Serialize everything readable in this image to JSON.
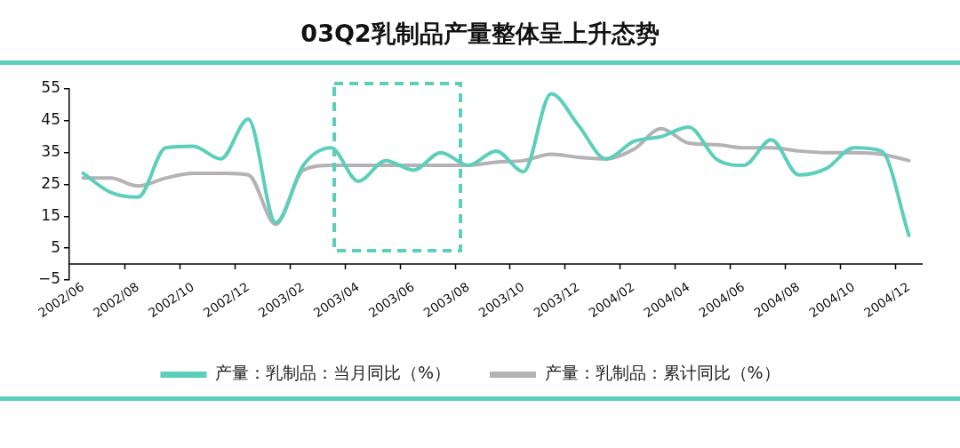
{
  "chart_data": {
    "type": "line",
    "title": "03Q2乳制品产量整体呈上升态势",
    "categories": [
      "2002/06",
      null,
      "2002/08",
      null,
      "2002/10",
      null,
      "2002/12",
      null,
      "2003/02",
      null,
      "2003/04",
      null,
      "2003/06",
      null,
      "2003/08",
      null,
      "2003/10",
      null,
      "2003/12",
      null,
      "2004/02",
      null,
      "2004/04",
      null,
      "2004/06",
      null,
      "2004/08",
      null,
      "2004/10",
      null,
      "2004/12"
    ],
    "series": [
      {
        "name": "产量：乳制品：当月同比（%）",
        "color": "#5ccfbb",
        "values": [
          28.5,
          22.5,
          21,
          36.5,
          37,
          33,
          45.5,
          13,
          31,
          36.5,
          26,
          32.5,
          29.5,
          35,
          31,
          35.5,
          29,
          53.5,
          43.5,
          33,
          38.5,
          40,
          43,
          33,
          31,
          39,
          28,
          30,
          36.5,
          35.5,
          9
        ]
      },
      {
        "name": "产量：乳制品：累计同比（%）",
        "color": "#b4b2b4",
        "values": [
          27,
          27,
          24.5,
          27,
          28.5,
          28.5,
          28,
          12.5,
          29.5,
          31,
          31,
          31,
          31,
          31,
          31,
          32,
          32.5,
          34.5,
          33.5,
          33,
          36,
          42.5,
          38,
          37.5,
          36.5,
          36.5,
          35.5,
          35,
          35,
          34.5,
          32.5
        ]
      }
    ],
    "ylim": [
      -5,
      55
    ],
    "yticks": [
      {
        "value": -5,
        "label": "−5"
      },
      5,
      15,
      25,
      35,
      45,
      55
    ],
    "legend": "bottom"
  }
}
